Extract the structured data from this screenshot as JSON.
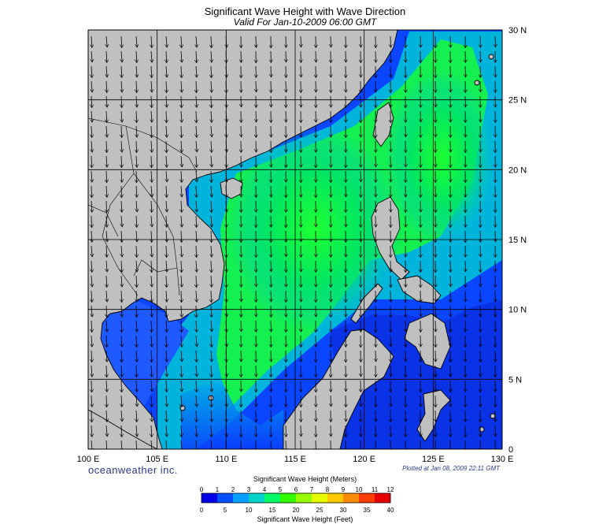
{
  "title": "Significant Wave Height with Wave Direction",
  "subtitle": "Valid For Jan-10-2009 06:00 GMT",
  "brand": "oceanweather inc.",
  "plotted": "Plotted at Jan 08, 2009 22:11 GMT",
  "lon_labels": [
    "100 E",
    "105 E",
    "110 E",
    "115 E",
    "120 E",
    "125 E",
    "130 E"
  ],
  "lat_labels": [
    "30 N",
    "25 N",
    "20 N",
    "15 N",
    "10 N",
    "5 N",
    "0"
  ],
  "colorbar": {
    "title_meters": "Significant Wave Height (Meters)",
    "title_feet": "Significant Wave Height (Feet)",
    "meter_ticks": [
      "0",
      "1",
      "2",
      "3",
      "4",
      "5",
      "6",
      "7",
      "8",
      "9",
      "10",
      "11",
      "12"
    ],
    "feet_ticks": [
      "0",
      "5",
      "10",
      "15",
      "20",
      "25",
      "30",
      "35",
      "40"
    ],
    "colors": [
      "#0000e6",
      "#0050ff",
      "#00a0ff",
      "#00d2c8",
      "#00ff64",
      "#32ff00",
      "#96ff00",
      "#e6ff00",
      "#ffc800",
      "#ff8c00",
      "#ff3c00",
      "#e60000"
    ]
  },
  "colors": {
    "land": "#c0c0c0",
    "grid": "#000000",
    "low_wave": "#0a3cff",
    "mid_wave": "#00c8b4",
    "high_wave": "#14ff3c"
  }
}
